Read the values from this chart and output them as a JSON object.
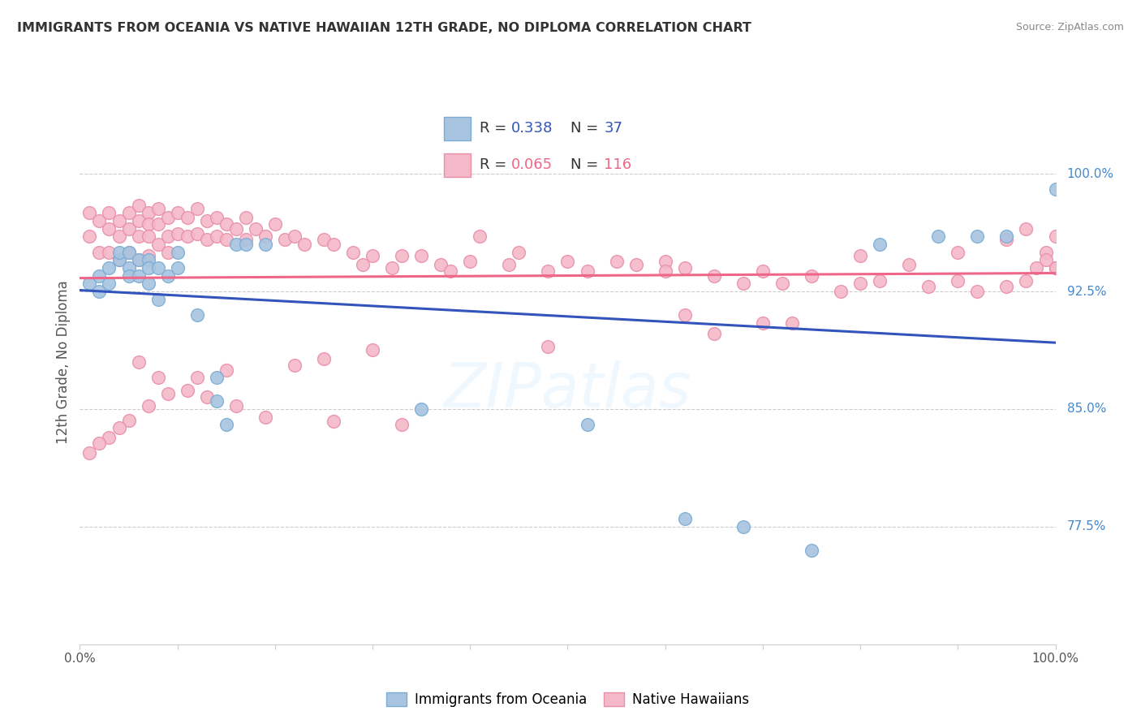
{
  "title": "IMMIGRANTS FROM OCEANIA VS NATIVE HAWAIIAN 12TH GRADE, NO DIPLOMA CORRELATION CHART",
  "source": "Source: ZipAtlas.com",
  "ylabel": "12th Grade, No Diploma",
  "right_ytick_labels": [
    "77.5%",
    "85.0%",
    "92.5%",
    "100.0%"
  ],
  "right_ytick_values": [
    0.775,
    0.85,
    0.925,
    1.0
  ],
  "legend_blue_r": "0.338",
  "legend_blue_n": "37",
  "legend_pink_r": "0.065",
  "legend_pink_n": "116",
  "blue_color": "#A8C4E0",
  "pink_color": "#F4B8C8",
  "blue_edge_color": "#7BADD4",
  "pink_edge_color": "#E890AA",
  "blue_line_color": "#3355BB",
  "pink_line_color": "#EE6688",
  "legend_r_color": "#3355BB",
  "legend_rn_color_pink": "#EE6688",
  "xmin": 0.0,
  "xmax": 1.0,
  "ymin": 0.7,
  "ymax": 1.06,
  "blue_scatter_x": [
    0.01,
    0.02,
    0.02,
    0.03,
    0.03,
    0.04,
    0.04,
    0.05,
    0.05,
    0.05,
    0.06,
    0.06,
    0.07,
    0.07,
    0.07,
    0.08,
    0.08,
    0.09,
    0.1,
    0.1,
    0.12,
    0.14,
    0.14,
    0.15,
    0.16,
    0.17,
    0.19,
    0.35,
    0.52,
    0.62,
    0.68,
    0.75,
    0.82,
    0.88,
    0.92,
    0.95,
    1.0
  ],
  "blue_scatter_y": [
    0.93,
    0.935,
    0.925,
    0.94,
    0.93,
    0.945,
    0.95,
    0.94,
    0.935,
    0.95,
    0.945,
    0.935,
    0.945,
    0.94,
    0.93,
    0.94,
    0.92,
    0.935,
    0.95,
    0.94,
    0.91,
    0.87,
    0.855,
    0.84,
    0.955,
    0.955,
    0.955,
    0.85,
    0.84,
    0.78,
    0.775,
    0.76,
    0.955,
    0.96,
    0.96,
    0.96,
    0.99
  ],
  "pink_scatter_x": [
    0.01,
    0.01,
    0.02,
    0.02,
    0.03,
    0.03,
    0.03,
    0.04,
    0.04,
    0.04,
    0.05,
    0.05,
    0.05,
    0.06,
    0.06,
    0.06,
    0.06,
    0.07,
    0.07,
    0.07,
    0.07,
    0.08,
    0.08,
    0.08,
    0.09,
    0.09,
    0.09,
    0.1,
    0.1,
    0.11,
    0.11,
    0.12,
    0.12,
    0.13,
    0.13,
    0.14,
    0.14,
    0.15,
    0.15,
    0.16,
    0.17,
    0.17,
    0.18,
    0.19,
    0.2,
    0.21,
    0.22,
    0.23,
    0.25,
    0.26,
    0.28,
    0.29,
    0.3,
    0.32,
    0.33,
    0.35,
    0.37,
    0.38,
    0.4,
    0.41,
    0.44,
    0.45,
    0.48,
    0.5,
    0.52,
    0.55,
    0.57,
    0.6,
    0.62,
    0.65,
    0.68,
    0.7,
    0.72,
    0.75,
    0.78,
    0.8,
    0.82,
    0.85,
    0.87,
    0.9,
    0.92,
    0.95,
    0.97,
    0.99,
    1.0,
    1.0,
    1.0,
    1.0,
    0.99,
    0.98,
    0.97,
    0.62,
    0.7,
    0.73,
    0.65,
    0.48,
    0.3,
    0.25,
    0.22,
    0.15,
    0.12,
    0.09,
    0.07,
    0.05,
    0.04,
    0.03,
    0.02,
    0.01,
    0.06,
    0.08,
    0.11,
    0.13,
    0.16,
    0.19,
    0.26,
    0.33,
    0.6,
    0.8,
    0.9,
    0.95
  ],
  "pink_scatter_y": [
    0.975,
    0.96,
    0.97,
    0.95,
    0.975,
    0.965,
    0.95,
    0.97,
    0.96,
    0.945,
    0.975,
    0.965,
    0.95,
    0.98,
    0.97,
    0.96,
    0.945,
    0.975,
    0.968,
    0.96,
    0.948,
    0.978,
    0.968,
    0.955,
    0.972,
    0.96,
    0.95,
    0.975,
    0.962,
    0.972,
    0.96,
    0.978,
    0.962,
    0.97,
    0.958,
    0.972,
    0.96,
    0.968,
    0.958,
    0.965,
    0.972,
    0.958,
    0.965,
    0.96,
    0.968,
    0.958,
    0.96,
    0.955,
    0.958,
    0.955,
    0.95,
    0.942,
    0.948,
    0.94,
    0.948,
    0.948,
    0.942,
    0.938,
    0.944,
    0.96,
    0.942,
    0.95,
    0.938,
    0.944,
    0.938,
    0.944,
    0.942,
    0.944,
    0.94,
    0.935,
    0.93,
    0.938,
    0.93,
    0.935,
    0.925,
    0.93,
    0.932,
    0.942,
    0.928,
    0.932,
    0.925,
    0.928,
    0.932,
    0.95,
    0.94,
    0.94,
    0.96,
    0.94,
    0.945,
    0.94,
    0.965,
    0.91,
    0.905,
    0.905,
    0.898,
    0.89,
    0.888,
    0.882,
    0.878,
    0.875,
    0.87,
    0.86,
    0.852,
    0.843,
    0.838,
    0.832,
    0.828,
    0.822,
    0.88,
    0.87,
    0.862,
    0.858,
    0.852,
    0.845,
    0.842,
    0.84,
    0.938,
    0.948,
    0.95,
    0.958
  ]
}
